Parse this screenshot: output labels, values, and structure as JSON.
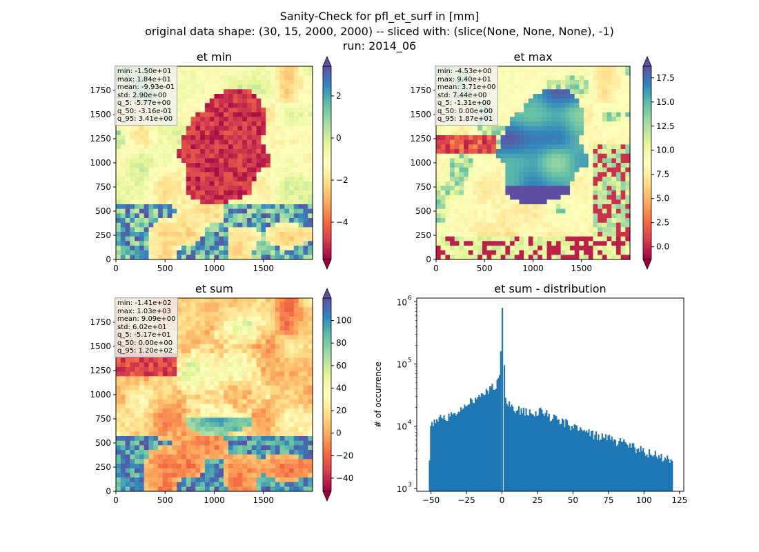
{
  "title_lines": [
    "Sanity-Check for pfl_et_surf in [mm]",
    "original data shape: (30, 15, 2000, 2000) -- sliced with: (slice(None, None, None), -1)",
    "run: 2014_06"
  ],
  "chart_data": [
    {
      "type": "heatmap",
      "title": "et min",
      "colormap": "Spectral",
      "xticks": [
        "0",
        "500",
        "1000",
        "1500"
      ],
      "yticks": [
        "0",
        "250",
        "500",
        "750",
        "1000",
        "1250",
        "1500",
        "1750"
      ],
      "xlim": [
        0,
        2000
      ],
      "ylim": [
        0,
        2000
      ],
      "colorbar": {
        "ticks": [
          "2",
          "0",
          "−2",
          "−4"
        ],
        "tick_values": [
          2,
          0,
          -2,
          -4
        ],
        "range": [
          -5.77,
          3.41
        ],
        "extend": "both"
      },
      "stats": [
        "min: -1.50e+01",
        "max: 1.84e+01",
        "mean: -9.93e-01",
        "std: 2.90e+00",
        "q_5: -5.77e+00",
        "q_50: -3.16e-01",
        "q_95: 3.41e+00"
      ]
    },
    {
      "type": "heatmap",
      "title": "et max",
      "colormap": "Spectral",
      "xticks": [
        "0",
        "500",
        "1000",
        "1500"
      ],
      "yticks": [
        "0",
        "250",
        "500",
        "750",
        "1000",
        "1250",
        "1500",
        "1750"
      ],
      "xlim": [
        0,
        2000
      ],
      "ylim": [
        0,
        2000
      ],
      "colorbar": {
        "ticks": [
          "17.5",
          "15.0",
          "12.5",
          "10.0",
          "7.5",
          "5.0",
          "2.5",
          "0.0"
        ],
        "tick_values": [
          17.5,
          15,
          12.5,
          10,
          7.5,
          5,
          2.5,
          0
        ],
        "range": [
          -1.31,
          18.7
        ],
        "extend": "both"
      },
      "stats": [
        "min: -4.53e+00",
        "max: 9.40e+01",
        "mean: 3.71e+00",
        "std: 7.44e+00",
        "q_5: -1.31e+00",
        "q_50: 0.00e+00",
        "q_95: 1.87e+01"
      ]
    },
    {
      "type": "heatmap",
      "title": "et sum",
      "colormap": "Spectral",
      "xticks": [
        "0",
        "500",
        "1000",
        "1500"
      ],
      "yticks": [
        "0",
        "250",
        "500",
        "750",
        "1000",
        "1250",
        "1500",
        "1750"
      ],
      "xlim": [
        0,
        2000
      ],
      "ylim": [
        0,
        2000
      ],
      "colorbar": {
        "ticks": [
          "100",
          "80",
          "60",
          "40",
          "20",
          "0",
          "−20",
          "−40"
        ],
        "tick_values": [
          100,
          80,
          60,
          40,
          20,
          0,
          -20,
          -40
        ],
        "range": [
          -51.7,
          120
        ],
        "extend": "both"
      },
      "stats": [
        "min: -1.41e+02",
        "max: 1.03e+03",
        "mean: 9.09e+00",
        "std: 6.02e+01",
        "q_5: -5.17e+01",
        "q_50: 0.00e+00",
        "q_95: 1.20e+02"
      ]
    },
    {
      "type": "bar",
      "title": "et sum - distribution",
      "ylabel": "# of occurrence",
      "yscale": "log",
      "xlim": [
        -60,
        128
      ],
      "ylim": [
        900,
        1150000
      ],
      "xticks": [
        "−50",
        "−25",
        "0",
        "25",
        "50",
        "75",
        "100",
        "125"
      ],
      "xtick_values": [
        -50,
        -25,
        0,
        25,
        50,
        75,
        100,
        125
      ],
      "yticks": [
        "10",
        "10",
        "10",
        "10"
      ],
      "yticks_exp": [
        "3",
        "4",
        "5",
        "6"
      ],
      "ytick_values": [
        1000,
        10000,
        100000,
        1000000
      ],
      "bar_color": "#1f77b4",
      "x": [
        -51.0,
        -45.3,
        -39.6,
        -33.9,
        -28.2,
        -22.5,
        -16.8,
        -11.1,
        -5.4,
        -2.0,
        -0.1,
        2.0,
        5.8,
        11.5,
        17.2,
        22.9,
        28.6,
        34.3,
        40.0,
        45.7,
        51.4,
        57.1,
        62.8,
        68.5,
        74.2,
        79.9,
        85.6,
        91.3,
        97.0,
        102.7,
        108.4,
        114.1,
        119.5
      ],
      "values": [
        12000,
        13000,
        14500,
        17000,
        21000,
        25000,
        32000,
        38000,
        47000,
        60000,
        800000,
        30000,
        21000,
        19000,
        18000,
        17000,
        17500,
        14500,
        12500,
        11500,
        9500,
        8500,
        7800,
        7200,
        6500,
        6000,
        5400,
        4800,
        4300,
        3900,
        3500,
        3300,
        3000
      ]
    }
  ]
}
